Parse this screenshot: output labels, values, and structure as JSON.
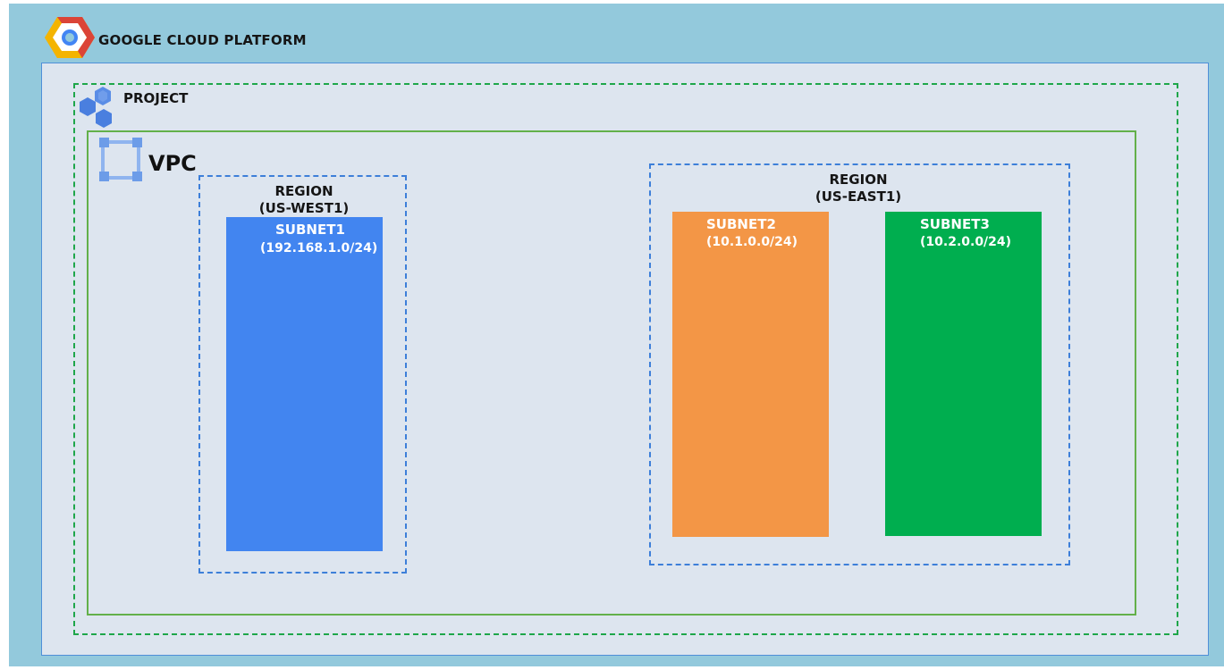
{
  "header": {
    "platform_label": "GOOGLE CLOUD PLATFORM",
    "icon": "google-cloud-platform-logo"
  },
  "project": {
    "label": "PROJECT",
    "icon": "project-hexagons-icon"
  },
  "vpc": {
    "label": "VPC",
    "icon": "vpc-network-icon"
  },
  "regions": [
    {
      "title": "REGION",
      "name": "(US-WEST1)",
      "subnets": [
        {
          "name": "SUBNET1",
          "cidr": "(192.168.1.0/24)",
          "color": "#4285f0"
        }
      ]
    },
    {
      "title": "REGION",
      "name": "(US-EAST1)",
      "subnets": [
        {
          "name": "SUBNET2",
          "cidr": "(10.1.0.0/24)",
          "color": "#f39646"
        },
        {
          "name": "SUBNET3",
          "cidr": "(10.2.0.0/24)",
          "color": "#00ae4f"
        }
      ]
    }
  ],
  "colors": {
    "background": "#93c9dc",
    "platform_panel": "#dde5ef",
    "project_border": "#1ea64a",
    "vpc_border": "#63b04a",
    "region_border": "#3d7fd9"
  }
}
